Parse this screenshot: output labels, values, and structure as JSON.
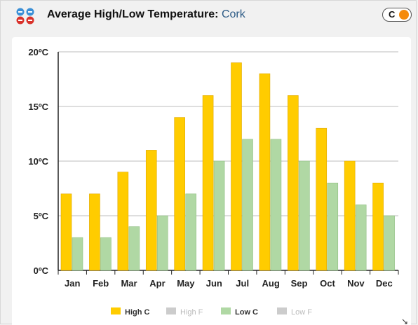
{
  "header": {
    "title": "Average High/Low Temperature:",
    "city": "Cork",
    "logo_icon": "weather-grid-icon",
    "unit_toggle": {
      "label": "C",
      "knob_color": "#f58a0b"
    }
  },
  "chart_data": {
    "type": "bar",
    "categories": [
      "Jan",
      "Feb",
      "Mar",
      "Apr",
      "May",
      "Jun",
      "Jul",
      "Aug",
      "Sep",
      "Oct",
      "Nov",
      "Dec"
    ],
    "series": [
      {
        "name": "High C",
        "values": [
          7,
          7,
          9,
          11,
          14,
          16,
          19,
          18,
          16,
          13,
          10,
          8
        ],
        "color": "#ffcc00"
      },
      {
        "name": "Low C",
        "values": [
          3,
          3,
          4,
          5,
          7,
          10,
          12,
          12,
          10,
          8,
          6,
          5
        ],
        "color": "#b0d8a4"
      }
    ],
    "ylim": [
      0,
      20
    ],
    "yticks": [
      0,
      5,
      10,
      15,
      20
    ],
    "ytick_labels": [
      "0ºC",
      "5ºC",
      "10ºC",
      "15ºC",
      "20ºC"
    ],
    "grid": true,
    "legend": {
      "placement": "bottom",
      "items": [
        {
          "label": "High C",
          "color": "#ffcc00",
          "active": true
        },
        {
          "label": "High F",
          "color": "#cccccc",
          "active": false
        },
        {
          "label": "Low C",
          "color": "#b0d8a4",
          "active": true
        },
        {
          "label": "Low F",
          "color": "#cccccc",
          "active": false
        }
      ]
    }
  }
}
